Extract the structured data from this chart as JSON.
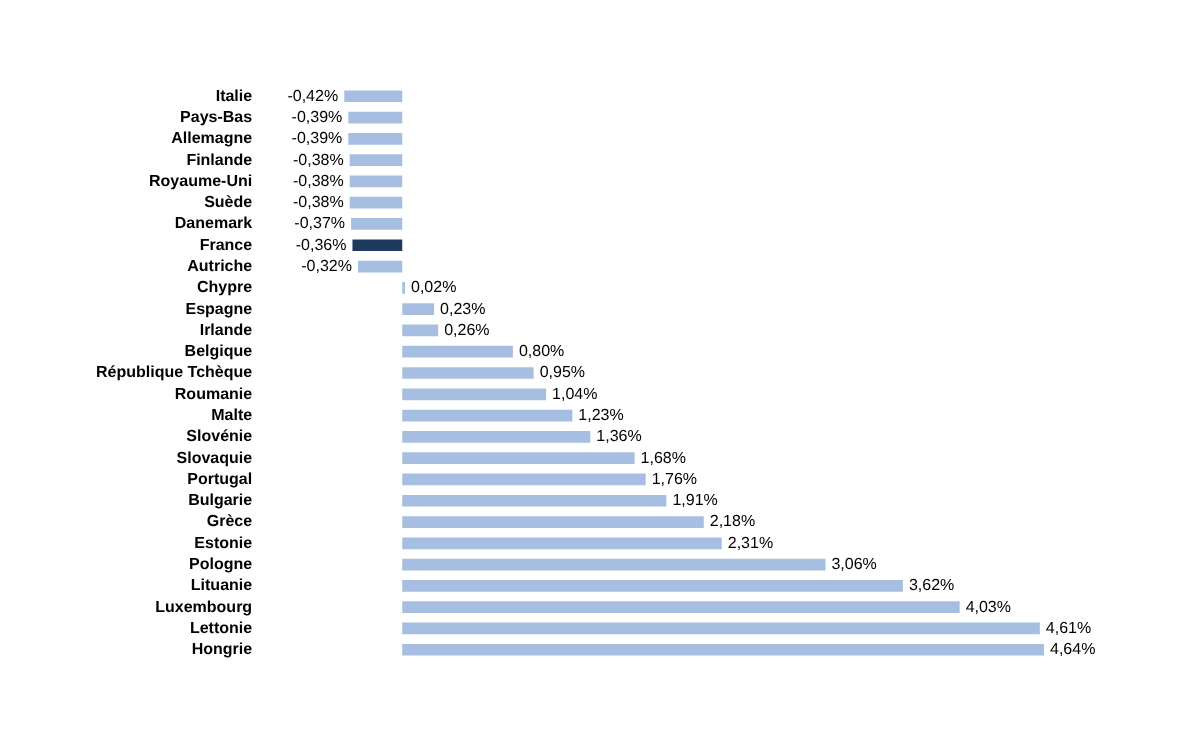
{
  "chart_data": {
    "type": "bar",
    "orientation": "horizontal",
    "categories": [
      "Italie",
      "Pays-Bas",
      "Allemagne",
      "Finlande",
      "Royaume-Uni",
      "Suède",
      "Danemark",
      "France",
      "Autriche",
      "Chypre",
      "Espagne",
      "Irlande",
      "Belgique",
      "République Tchèque",
      "Roumanie",
      "Malte",
      "Slovénie",
      "Slovaquie",
      "Portugal",
      "Bulgarie",
      "Grèce",
      "Estonie",
      "Pologne",
      "Lituanie",
      "Luxembourg",
      "Lettonie",
      "Hongrie"
    ],
    "values": [
      -0.42,
      -0.39,
      -0.39,
      -0.38,
      -0.38,
      -0.38,
      -0.37,
      -0.36,
      -0.32,
      0.02,
      0.23,
      0.26,
      0.8,
      0.95,
      1.04,
      1.23,
      1.36,
      1.68,
      1.76,
      1.91,
      2.18,
      2.31,
      3.06,
      3.62,
      4.03,
      4.61,
      4.64
    ],
    "value_labels": [
      "-0,42%",
      "-0,39%",
      "-0,39%",
      "-0,38%",
      "-0,38%",
      "-0,38%",
      "-0,37%",
      "-0,36%",
      "-0,32%",
      "0,02%",
      "0,23%",
      "0,26%",
      "0,80%",
      "0,95%",
      "1,04%",
      "1,23%",
      "1,36%",
      "1,68%",
      "1,76%",
      "1,91%",
      "2,18%",
      "2,31%",
      "3,06%",
      "3,62%",
      "4,03%",
      "4,61%",
      "4,64%"
    ],
    "colors": [
      "#a6bfe0",
      "#a6bfe0",
      "#a6bfe0",
      "#a6bfe0",
      "#a6bfe0",
      "#a6bfe0",
      "#a6bfe0",
      "#1f3a5f",
      "#a6bfe0",
      "#a6bfe0",
      "#a6bfe0",
      "#a6bfe0",
      "#a6bfe0",
      "#a6bfe0",
      "#a6bfe0",
      "#a6bfe0",
      "#a6bfe0",
      "#a6bfe0",
      "#a6bfe0",
      "#a6bfe0",
      "#a6bfe0",
      "#a6bfe0",
      "#a6bfe0",
      "#a6bfe0",
      "#a6bfe0",
      "#a6bfe0",
      "#a6bfe0"
    ],
    "legend": false
  }
}
